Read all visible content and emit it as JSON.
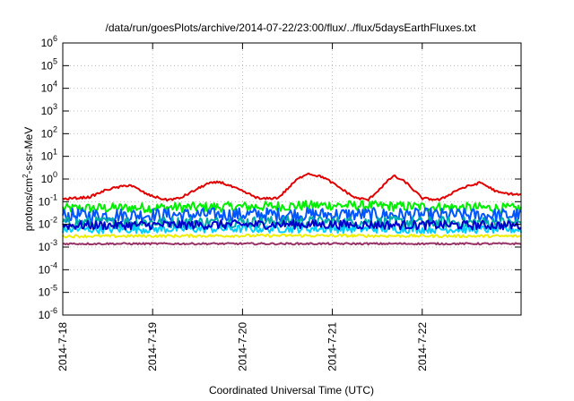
{
  "chart_data": {
    "type": "line",
    "title": "/data/run/goesPlots/archive/2014-07-22/23:00/flux/../flux/5daysEarthFluxes.txt",
    "xlabel": "Coordinated Universal Time (UTC)",
    "ylabel_main": "protons/cm",
    "ylabel_sup": "2",
    "ylabel_rest": "-s-sr-MeV",
    "yscale": "log",
    "ylim_exponents": [
      -6,
      6
    ],
    "y_tick_base": "10",
    "y_tick_exponents": [
      "-6",
      "-5",
      "-4",
      "-3",
      "-2",
      "-1",
      "0",
      "1",
      "2",
      "3",
      "4",
      "5",
      "6"
    ],
    "xlim_days": [
      0,
      5.1
    ],
    "x_ticks": [
      {
        "label": "2014-7-18",
        "day": 0
      },
      {
        "label": "2014-7-19",
        "day": 1
      },
      {
        "label": "2014-7-20",
        "day": 2
      },
      {
        "label": "2014-7-21",
        "day": 3
      },
      {
        "label": "2014-7-22",
        "day": 4
      }
    ],
    "grid": true,
    "series": [
      {
        "color": "#e00000",
        "profile": [
          [
            0,
            0.13
          ],
          [
            0.3,
            0.16
          ],
          [
            0.5,
            0.35
          ],
          [
            0.75,
            0.55
          ],
          [
            0.95,
            0.2
          ],
          [
            1.15,
            0.12
          ],
          [
            1.3,
            0.14
          ],
          [
            1.6,
            0.6
          ],
          [
            1.75,
            0.75
          ],
          [
            1.95,
            0.35
          ],
          [
            2.2,
            0.13
          ],
          [
            2.4,
            0.15
          ],
          [
            2.6,
            0.9
          ],
          [
            2.72,
            1.8
          ],
          [
            2.9,
            1.2
          ],
          [
            3.05,
            0.5
          ],
          [
            3.25,
            0.15
          ],
          [
            3.4,
            0.12
          ],
          [
            3.55,
            0.45
          ],
          [
            3.68,
            1.4
          ],
          [
            3.82,
            0.7
          ],
          [
            4.0,
            0.14
          ],
          [
            4.2,
            0.12
          ],
          [
            4.4,
            0.35
          ],
          [
            4.65,
            0.7
          ],
          [
            4.85,
            0.25
          ],
          [
            5.1,
            0.2
          ]
        ],
        "noise": 0.05
      },
      {
        "color": "#00ee00",
        "profile": [
          [
            0,
            0.05
          ],
          [
            1.0,
            0.055
          ],
          [
            2.0,
            0.06
          ],
          [
            3.0,
            0.07
          ],
          [
            4.0,
            0.06
          ],
          [
            5.1,
            0.05
          ]
        ],
        "noise": 0.22
      },
      {
        "color": "#00aaaa",
        "profile": [
          [
            0,
            0.012
          ],
          [
            2.5,
            0.013
          ],
          [
            5.1,
            0.012
          ]
        ],
        "noise": 0.25
      },
      {
        "color": "#0055ff",
        "profile": [
          [
            0,
            0.025
          ],
          [
            2.5,
            0.028
          ],
          [
            5.1,
            0.025
          ]
        ],
        "noise": 0.3
      },
      {
        "color": "#0000cc",
        "profile": [
          [
            0,
            0.009
          ],
          [
            2.5,
            0.01
          ],
          [
            5.1,
            0.009
          ]
        ],
        "noise": 0.2
      },
      {
        "color": "#00ccff",
        "profile": [
          [
            0,
            0.006
          ],
          [
            2.5,
            0.0065
          ],
          [
            5.1,
            0.006
          ]
        ],
        "noise": 0.18
      },
      {
        "color": "#eeee00",
        "profile": [
          [
            0,
            0.003
          ],
          [
            2.5,
            0.0032
          ],
          [
            5.1,
            0.003
          ]
        ],
        "noise": 0.06
      },
      {
        "color": "#993366",
        "profile": [
          [
            0,
            0.0014
          ],
          [
            2.5,
            0.0014
          ],
          [
            5.1,
            0.0014
          ]
        ],
        "noise": 0.04
      }
    ]
  }
}
